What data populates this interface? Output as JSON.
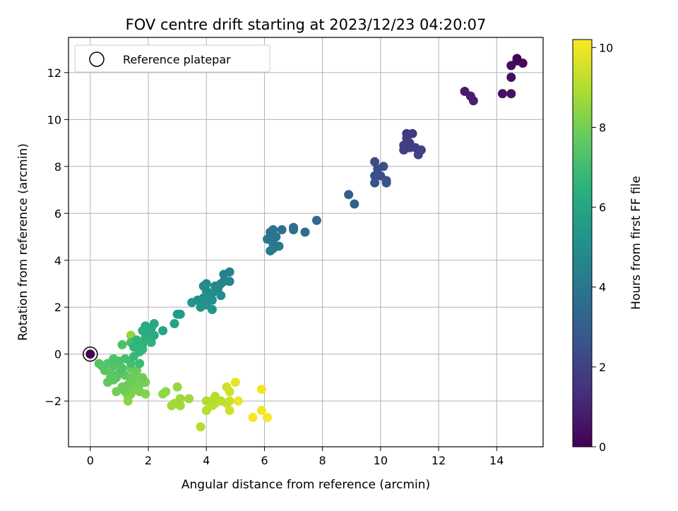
{
  "chart_data": {
    "type": "scatter",
    "title": "FOV centre drift starting at 2023/12/23 04:20:07",
    "xlabel": "Angular distance from reference (arcmin)",
    "ylabel": "Rotation from reference (arcmin)",
    "xlim": [
      -0.75,
      15.6
    ],
    "ylim": [
      -3.95,
      13.5
    ],
    "xticks": [
      0,
      2,
      4,
      6,
      8,
      10,
      12,
      14
    ],
    "yticks": [
      -2,
      0,
      2,
      4,
      6,
      8,
      10,
      12
    ],
    "grid": true,
    "legend": {
      "location": "top-left",
      "entries": [
        "Reference platepar"
      ]
    },
    "reference_point": {
      "x": 0,
      "y": 0
    },
    "colorbar": {
      "label": "Hours from first FF file",
      "colormap": "viridis",
      "range": [
        0,
        10.2
      ],
      "ticks": [
        0,
        2,
        4,
        6,
        8,
        10
      ]
    },
    "points": [
      {
        "x": 14.7,
        "y": 12.6,
        "c": 0.1
      },
      {
        "x": 14.9,
        "y": 12.4,
        "c": 0.2
      },
      {
        "x": 14.5,
        "y": 12.3,
        "c": 0.3
      },
      {
        "x": 14.7,
        "y": 12.5,
        "c": 0.2
      },
      {
        "x": 14.5,
        "y": 11.8,
        "c": 0.4
      },
      {
        "x": 14.2,
        "y": 11.1,
        "c": 0.5
      },
      {
        "x": 14.5,
        "y": 11.1,
        "c": 0.5
      },
      {
        "x": 12.9,
        "y": 11.2,
        "c": 0.7
      },
      {
        "x": 13.1,
        "y": 11.0,
        "c": 0.8
      },
      {
        "x": 13.2,
        "y": 10.8,
        "c": 0.9
      },
      {
        "x": 10.9,
        "y": 9.4,
        "c": 1.7
      },
      {
        "x": 11.1,
        "y": 9.4,
        "c": 1.7
      },
      {
        "x": 10.9,
        "y": 9.2,
        "c": 1.8
      },
      {
        "x": 11.0,
        "y": 9.0,
        "c": 1.8
      },
      {
        "x": 10.8,
        "y": 8.9,
        "c": 1.9
      },
      {
        "x": 11.2,
        "y": 8.8,
        "c": 1.9
      },
      {
        "x": 10.8,
        "y": 8.7,
        "c": 2.0
      },
      {
        "x": 11.0,
        "y": 8.8,
        "c": 1.9
      },
      {
        "x": 11.4,
        "y": 8.7,
        "c": 2.0
      },
      {
        "x": 11.3,
        "y": 8.5,
        "c": 2.0
      },
      {
        "x": 9.8,
        "y": 8.2,
        "c": 2.3
      },
      {
        "x": 9.9,
        "y": 7.9,
        "c": 2.4
      },
      {
        "x": 10.1,
        "y": 8.0,
        "c": 2.4
      },
      {
        "x": 10.0,
        "y": 7.6,
        "c": 2.5
      },
      {
        "x": 9.8,
        "y": 7.6,
        "c": 2.5
      },
      {
        "x": 10.2,
        "y": 7.4,
        "c": 2.6
      },
      {
        "x": 9.8,
        "y": 7.3,
        "c": 2.6
      },
      {
        "x": 10.2,
        "y": 7.3,
        "c": 2.7
      },
      {
        "x": 8.9,
        "y": 6.8,
        "c": 3.0
      },
      {
        "x": 9.1,
        "y": 6.4,
        "c": 3.1
      },
      {
        "x": 7.8,
        "y": 5.7,
        "c": 3.5
      },
      {
        "x": 7.4,
        "y": 5.2,
        "c": 3.6
      },
      {
        "x": 7.0,
        "y": 5.4,
        "c": 3.7
      },
      {
        "x": 7.0,
        "y": 5.3,
        "c": 3.7
      },
      {
        "x": 6.6,
        "y": 5.3,
        "c": 3.8
      },
      {
        "x": 6.3,
        "y": 5.3,
        "c": 3.9
      },
      {
        "x": 6.2,
        "y": 5.2,
        "c": 3.9
      },
      {
        "x": 6.4,
        "y": 5.0,
        "c": 4.0
      },
      {
        "x": 6.1,
        "y": 4.9,
        "c": 4.0
      },
      {
        "x": 6.3,
        "y": 4.9,
        "c": 4.0
      },
      {
        "x": 6.3,
        "y": 4.7,
        "c": 4.1
      },
      {
        "x": 6.5,
        "y": 4.6,
        "c": 4.1
      },
      {
        "x": 6.2,
        "y": 4.4,
        "c": 4.2
      },
      {
        "x": 6.3,
        "y": 4.5,
        "c": 4.2
      },
      {
        "x": 4.8,
        "y": 3.5,
        "c": 4.5
      },
      {
        "x": 4.6,
        "y": 3.4,
        "c": 4.5
      },
      {
        "x": 4.8,
        "y": 3.1,
        "c": 4.6
      },
      {
        "x": 4.5,
        "y": 3.0,
        "c": 4.7
      },
      {
        "x": 4.6,
        "y": 3.1,
        "c": 4.6
      },
      {
        "x": 4.4,
        "y": 2.8,
        "c": 4.8
      },
      {
        "x": 4.3,
        "y": 2.9,
        "c": 4.8
      },
      {
        "x": 4.0,
        "y": 3.0,
        "c": 4.9
      },
      {
        "x": 3.9,
        "y": 2.9,
        "c": 4.9
      },
      {
        "x": 4.2,
        "y": 2.6,
        "c": 5.0
      },
      {
        "x": 4.5,
        "y": 2.5,
        "c": 5.0
      },
      {
        "x": 4.0,
        "y": 2.7,
        "c": 5.0
      },
      {
        "x": 4.1,
        "y": 2.4,
        "c": 5.1
      },
      {
        "x": 3.9,
        "y": 2.3,
        "c": 5.1
      },
      {
        "x": 3.7,
        "y": 2.3,
        "c": 5.2
      },
      {
        "x": 4.0,
        "y": 2.1,
        "c": 5.2
      },
      {
        "x": 4.2,
        "y": 2.3,
        "c": 5.2
      },
      {
        "x": 3.8,
        "y": 2.0,
        "c": 5.3
      },
      {
        "x": 4.2,
        "y": 1.9,
        "c": 5.3
      },
      {
        "x": 3.5,
        "y": 2.2,
        "c": 5.4
      },
      {
        "x": 3.9,
        "y": 2.4,
        "c": 5.2
      },
      {
        "x": 3.1,
        "y": 1.7,
        "c": 5.6
      },
      {
        "x": 3.0,
        "y": 1.7,
        "c": 5.6
      },
      {
        "x": 2.9,
        "y": 1.3,
        "c": 5.8
      },
      {
        "x": 2.5,
        "y": 1.0,
        "c": 6.0
      },
      {
        "x": 2.2,
        "y": 1.3,
        "c": 6.1
      },
      {
        "x": 2.1,
        "y": 1.1,
        "c": 6.2
      },
      {
        "x": 1.9,
        "y": 1.2,
        "c": 6.2
      },
      {
        "x": 2.2,
        "y": 0.8,
        "c": 6.3
      },
      {
        "x": 2.0,
        "y": 0.9,
        "c": 6.3
      },
      {
        "x": 1.8,
        "y": 1.0,
        "c": 6.4
      },
      {
        "x": 2.1,
        "y": 0.5,
        "c": 6.5
      },
      {
        "x": 1.9,
        "y": 0.7,
        "c": 6.4
      },
      {
        "x": 1.6,
        "y": 0.6,
        "c": 6.6
      },
      {
        "x": 1.8,
        "y": 0.4,
        "c": 6.6
      },
      {
        "x": 1.5,
        "y": 0.3,
        "c": 6.7
      },
      {
        "x": 1.7,
        "y": 0.1,
        "c": 6.8
      },
      {
        "x": 1.5,
        "y": -0.1,
        "c": 6.9
      },
      {
        "x": 1.8,
        "y": 0.2,
        "c": 6.8
      },
      {
        "x": 1.7,
        "y": -0.4,
        "c": 7.0
      },
      {
        "x": 1.4,
        "y": 0.5,
        "c": 7.2
      },
      {
        "x": 1.1,
        "y": 0.4,
        "c": 7.3
      },
      {
        "x": 1.2,
        "y": -0.2,
        "c": 7.2
      },
      {
        "x": 1.0,
        "y": -0.3,
        "c": 7.3
      },
      {
        "x": 0.8,
        "y": -0.2,
        "c": 7.3
      },
      {
        "x": 1.4,
        "y": -0.4,
        "c": 7.1
      },
      {
        "x": 1.1,
        "y": -0.6,
        "c": 7.3
      },
      {
        "x": 0.6,
        "y": -0.4,
        "c": 7.4
      },
      {
        "x": 0.8,
        "y": -0.5,
        "c": 7.4
      },
      {
        "x": 0.4,
        "y": -0.5,
        "c": 7.5
      },
      {
        "x": 0.3,
        "y": -0.4,
        "c": 7.5
      },
      {
        "x": 0.5,
        "y": -0.7,
        "c": 7.5
      },
      {
        "x": 0.7,
        "y": -0.8,
        "c": 7.6
      },
      {
        "x": 1.0,
        "y": -0.8,
        "c": 7.5
      },
      {
        "x": 0.9,
        "y": -1.0,
        "c": 7.6
      },
      {
        "x": 0.7,
        "y": -1.0,
        "c": 7.6
      },
      {
        "x": 0.6,
        "y": -1.2,
        "c": 7.7
      },
      {
        "x": 0.8,
        "y": -1.1,
        "c": 7.6
      },
      {
        "x": 1.2,
        "y": -0.9,
        "c": 7.6
      },
      {
        "x": 1.4,
        "y": -0.6,
        "c": 7.8
      },
      {
        "x": 1.6,
        "y": -0.7,
        "c": 7.8
      },
      {
        "x": 1.5,
        "y": -0.9,
        "c": 7.9
      },
      {
        "x": 1.8,
        "y": -1.0,
        "c": 7.9
      },
      {
        "x": 1.4,
        "y": -1.1,
        "c": 7.9
      },
      {
        "x": 1.6,
        "y": -1.2,
        "c": 8.0
      },
      {
        "x": 1.3,
        "y": -1.3,
        "c": 7.9
      },
      {
        "x": 1.7,
        "y": -1.3,
        "c": 8.0
      },
      {
        "x": 1.1,
        "y": -1.4,
        "c": 7.9
      },
      {
        "x": 1.5,
        "y": -1.5,
        "c": 8.1
      },
      {
        "x": 1.9,
        "y": -1.2,
        "c": 8.1
      },
      {
        "x": 1.2,
        "y": -1.6,
        "c": 8.0
      },
      {
        "x": 1.4,
        "y": -1.7,
        "c": 8.2
      },
      {
        "x": 1.7,
        "y": -1.6,
        "c": 8.2
      },
      {
        "x": 0.9,
        "y": -1.6,
        "c": 8.0
      },
      {
        "x": 1.3,
        "y": -1.8,
        "c": 8.3
      },
      {
        "x": 1.9,
        "y": -1.7,
        "c": 8.3
      },
      {
        "x": 1.3,
        "y": -2.0,
        "c": 8.4
      },
      {
        "x": 1.4,
        "y": 0.8,
        "c": 8.5
      },
      {
        "x": 2.6,
        "y": -1.6,
        "c": 8.5
      },
      {
        "x": 2.5,
        "y": -1.7,
        "c": 8.5
      },
      {
        "x": 3.0,
        "y": -1.4,
        "c": 8.6
      },
      {
        "x": 3.1,
        "y": -1.9,
        "c": 8.7
      },
      {
        "x": 3.4,
        "y": -1.9,
        "c": 8.7
      },
      {
        "x": 2.9,
        "y": -2.1,
        "c": 8.8
      },
      {
        "x": 3.1,
        "y": -2.2,
        "c": 8.8
      },
      {
        "x": 2.8,
        "y": -2.2,
        "c": 8.8
      },
      {
        "x": 4.0,
        "y": -2.0,
        "c": 9.0
      },
      {
        "x": 4.3,
        "y": -1.8,
        "c": 9.1
      },
      {
        "x": 4.2,
        "y": -2.0,
        "c": 9.1
      },
      {
        "x": 4.5,
        "y": -2.0,
        "c": 9.2
      },
      {
        "x": 4.3,
        "y": -2.1,
        "c": 9.2
      },
      {
        "x": 4.2,
        "y": -2.2,
        "c": 9.2
      },
      {
        "x": 4.0,
        "y": -2.4,
        "c": 9.1
      },
      {
        "x": 3.8,
        "y": -3.1,
        "c": 9.1
      },
      {
        "x": 4.7,
        "y": -2.1,
        "c": 9.3
      },
      {
        "x": 4.7,
        "y": -1.4,
        "c": 9.5
      },
      {
        "x": 4.8,
        "y": -1.6,
        "c": 9.5
      },
      {
        "x": 4.8,
        "y": -2.0,
        "c": 9.4
      },
      {
        "x": 4.8,
        "y": -2.4,
        "c": 9.5
      },
      {
        "x": 5.0,
        "y": -1.2,
        "c": 9.8
      },
      {
        "x": 5.1,
        "y": -2.0,
        "c": 9.9
      },
      {
        "x": 5.9,
        "y": -1.5,
        "c": 10.0
      },
      {
        "x": 5.9,
        "y": -2.4,
        "c": 10.0
      },
      {
        "x": 5.6,
        "y": -2.7,
        "c": 10.1
      },
      {
        "x": 6.1,
        "y": -2.7,
        "c": 10.1
      }
    ]
  }
}
